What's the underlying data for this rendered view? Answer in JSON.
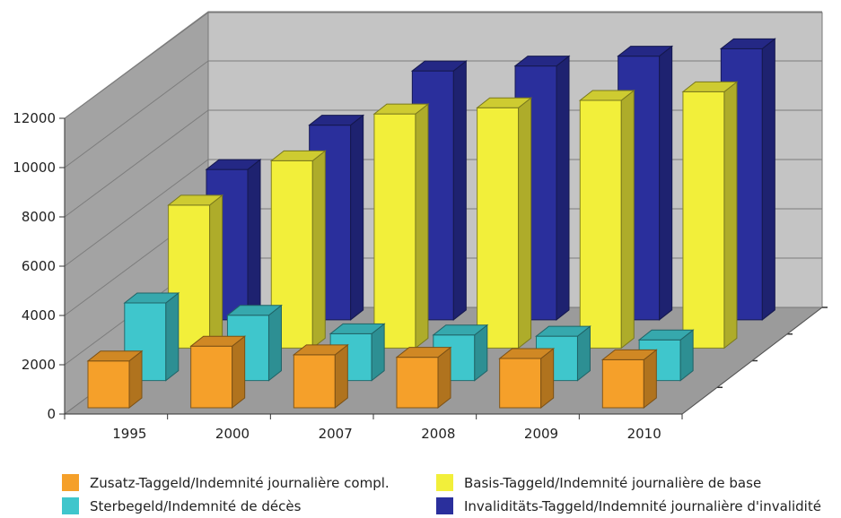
{
  "chart_data": {
    "type": "bar",
    "categories": [
      "1995",
      "2000",
      "2007",
      "2008",
      "2009",
      "2010"
    ],
    "series": [
      {
        "name": "Zusatz-Taggeld/Indemnité journalière compl.",
        "values": [
          1900,
          2500,
          2150,
          2050,
          2000,
          1950
        ]
      },
      {
        "name": "Sterbegeld/Indemnité de décès",
        "values": [
          3150,
          2650,
          1900,
          1850,
          1800,
          1650
        ]
      },
      {
        "name": "Basis-Taggeld/Indemnité journalière de base",
        "values": [
          5800,
          7600,
          9500,
          9750,
          10050,
          10400
        ]
      },
      {
        "name": "Invaliditäts-Taggeld/Indemnité journalière d'invalidité",
        "values": [
          6100,
          7900,
          10100,
          10300,
          10700,
          11000
        ]
      }
    ],
    "y_ticks": [
      "0",
      "2000",
      "4000",
      "6000",
      "8000",
      "10000",
      "12000"
    ],
    "ylim": [
      0,
      12000
    ],
    "grid": true,
    "legend_position": "bottom"
  },
  "colors": {
    "Zusatz": "#f5a02a",
    "Sterbegeld": "#3fc6cc",
    "Basis": "#f2ef3a",
    "Invaliditaet": "#2a2f9c",
    "back_wall": "#c4c4c4",
    "side_wall": "#a3a3a3",
    "floor": "#9b9b9b"
  }
}
